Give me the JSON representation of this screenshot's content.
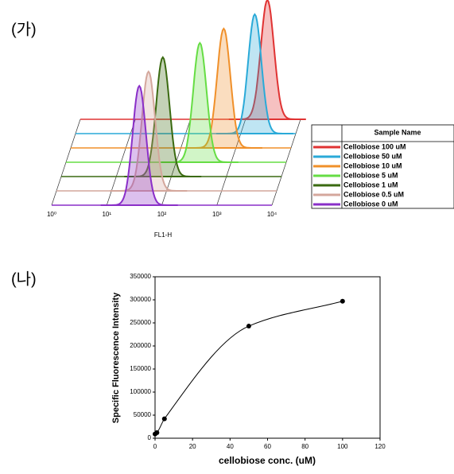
{
  "chart_data": [
    {
      "type": "histogram-overlay",
      "label": "(가)",
      "xlabel": "FL1-H",
      "legend_title": "Sample Name",
      "log_x": true,
      "xlim": [
        1,
        10000
      ],
      "xticks": [
        {
          "value": 1,
          "label": "10⁰"
        },
        {
          "value": 10,
          "label": "10¹"
        },
        {
          "value": 100,
          "label": "10²"
        },
        {
          "value": 1000,
          "label": "10³"
        },
        {
          "value": 10000,
          "label": "10⁴"
        }
      ],
      "series": [
        {
          "name": "Cellobiose 100 uM",
          "color": "#e03333",
          "peak": 2500
        },
        {
          "name": "Cellobiose 50 uM",
          "color": "#2aaad8",
          "peak": 1800
        },
        {
          "name": "Cellobiose 10 uM",
          "color": "#f0902a",
          "peak": 600
        },
        {
          "name": "Cellobiose 5 uM",
          "color": "#66dd44",
          "peak": 270
        },
        {
          "name": "Cellobiose 1 uM",
          "color": "#3a6a10",
          "peak": 70
        },
        {
          "name": "Cellobiose 0.5 uM",
          "color": "#d4a79c",
          "peak": 47
        },
        {
          "name": "Cellobiose 0 uM",
          "color": "#8a2fc8",
          "peak": 39
        }
      ]
    },
    {
      "type": "line",
      "label": "(나)",
      "xlabel": "cellobiose conc. (uM)",
      "ylabel": "Specific Fluorescence Intensity",
      "xlim": [
        0,
        120
      ],
      "xticks": [
        0,
        20,
        40,
        60,
        80,
        100,
        120
      ],
      "ylim": [
        0,
        350000
      ],
      "yticks": [
        0,
        50000,
        100000,
        150000,
        200000,
        250000,
        300000,
        350000
      ],
      "series": [
        {
          "color": "#000000",
          "x": [
            0,
            1,
            5,
            50,
            100
          ],
          "values": [
            9000,
            12000,
            42000,
            243000,
            297000
          ]
        }
      ]
    }
  ]
}
